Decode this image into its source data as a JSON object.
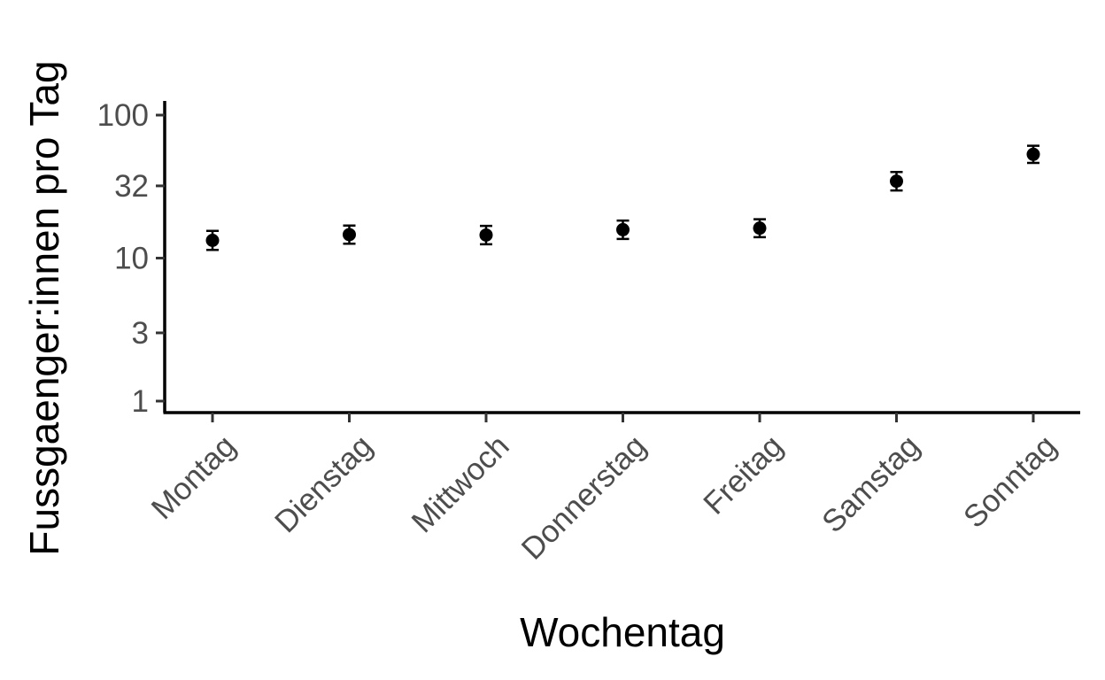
{
  "chart_data": {
    "type": "scatter",
    "xlabel": "Wochentag",
    "ylabel": "Fussgaenger:innen pro Tag",
    "yscale": "log",
    "ylim": [
      0.85,
      115
    ],
    "yticks": [
      {
        "value": 1,
        "label": "1"
      },
      {
        "value": 3,
        "label": "3"
      },
      {
        "value": 10,
        "label": "10"
      },
      {
        "value": 32,
        "label": "32"
      },
      {
        "value": 100,
        "label": "100"
      }
    ],
    "categories": [
      "Montag",
      "Dienstag",
      "Mittwoch",
      "Donnerstag",
      "Freitag",
      "Samstag",
      "Sonntag"
    ],
    "series": [
      {
        "values": [
          13.3,
          14.6,
          14.5,
          15.8,
          16.2,
          34.5,
          53.2
        ],
        "lower": [
          11.4,
          12.6,
          12.5,
          13.6,
          14.0,
          29.7,
          46.3
        ],
        "upper": [
          15.5,
          16.9,
          16.8,
          18.3,
          18.7,
          40.0,
          61.0
        ]
      }
    ],
    "grid": false,
    "legend": "none",
    "point_color": "#000000"
  }
}
